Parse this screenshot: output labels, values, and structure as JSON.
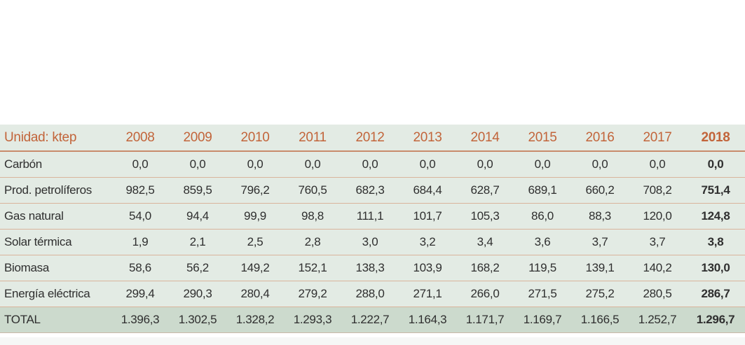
{
  "table": {
    "header_label": "Unidad: ktep",
    "years": [
      "2008",
      "2009",
      "2010",
      "2011",
      "2012",
      "2013",
      "2014",
      "2015",
      "2016",
      "2017",
      "2018"
    ],
    "rows": [
      {
        "label": "Carbón",
        "values": [
          "0,0",
          "0,0",
          "0,0",
          "0,0",
          "0,0",
          "0,0",
          "0,0",
          "0,0",
          "0,0",
          "0,0",
          "0,0"
        ]
      },
      {
        "label": "Prod. petrolíferos",
        "values": [
          "982,5",
          "859,5",
          "796,2",
          "760,5",
          "682,3",
          "684,4",
          "628,7",
          "689,1",
          "660,2",
          "708,2",
          "751,4"
        ]
      },
      {
        "label": "Gas natural",
        "values": [
          "54,0",
          "94,4",
          "99,9",
          "98,8",
          "111,1",
          "101,7",
          "105,3",
          "86,0",
          "88,3",
          "120,0",
          "124,8"
        ]
      },
      {
        "label": "Solar térmica",
        "values": [
          "1,9",
          "2,1",
          "2,5",
          "2,8",
          "3,0",
          "3,2",
          "3,4",
          "3,6",
          "3,7",
          "3,7",
          "3,8"
        ]
      },
      {
        "label": "Biomasa",
        "values": [
          "58,6",
          "56,2",
          "149,2",
          "152,1",
          "138,3",
          "103,9",
          "168,2",
          "119,5",
          "139,1",
          "140,2",
          "130,0"
        ]
      },
      {
        "label": "Energía eléctrica",
        "values": [
          "299,4",
          "290,3",
          "280,4",
          "279,2",
          "288,0",
          "271,1",
          "266,0",
          "271,5",
          "275,2",
          "280,5",
          "286,7"
        ]
      }
    ],
    "total": {
      "label": "TOTAL",
      "values": [
        "1.396,3",
        "1.302,5",
        "1.328,2",
        "1.293,3",
        "1.222,7",
        "1.164,3",
        "1.171,7",
        "1.169,7",
        "1.166,5",
        "1.252,7",
        "1.296,7"
      ]
    }
  },
  "colors": {
    "header_text": "#c2643a",
    "row_background": "#e3ebe4",
    "total_background": "#ccdacd",
    "body_text": "#2f2f2f"
  }
}
